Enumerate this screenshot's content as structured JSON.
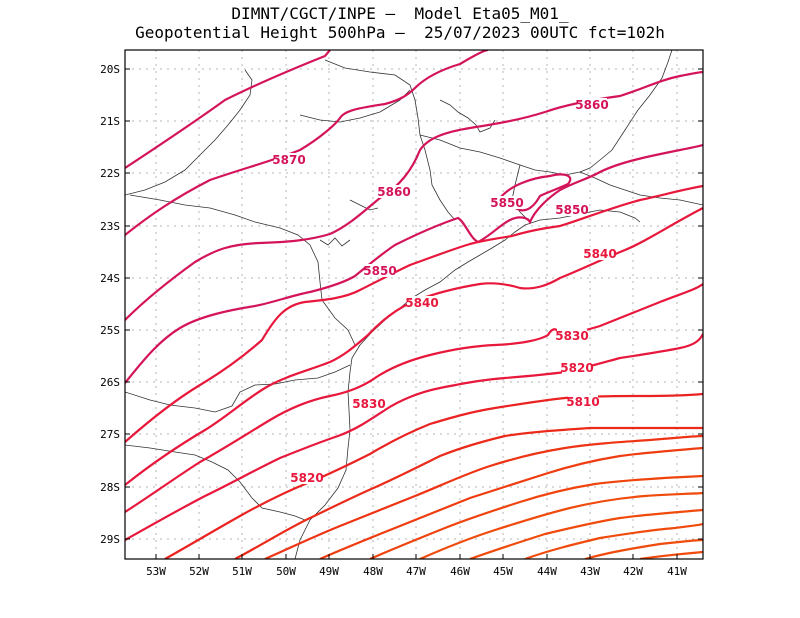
{
  "title": {
    "line1": "DIMNT/CGCT/INPE –  Model Eta05_M01_",
    "line2": "Geopotential Height 500hPa –  25/07/2023 00UTC fct=102h"
  },
  "axes": {
    "lat_labels": [
      "20S",
      "21S",
      "22S",
      "23S",
      "24S",
      "25S",
      "26S",
      "27S",
      "28S",
      "29S"
    ],
    "lon_labels": [
      "53W",
      "52W",
      "51W",
      "50W",
      "49W",
      "48W",
      "47W",
      "46W",
      "45W",
      "44W",
      "43W",
      "42W",
      "41W"
    ]
  },
  "contour_labels": [
    {
      "text": "5870",
      "color": "#d4145a"
    },
    {
      "text": "5860",
      "color": "#d4145a"
    },
    {
      "text": "5860",
      "color": "#d4145a"
    },
    {
      "text": "5850",
      "color": "#d4145a"
    },
    {
      "text": "5850",
      "color": "#d4145a"
    },
    {
      "text": "5850",
      "color": "#d4145a"
    },
    {
      "text": "5840",
      "color": "#e8183c"
    },
    {
      "text": "5840",
      "color": "#e8183c"
    },
    {
      "text": "5830",
      "color": "#e8183c"
    },
    {
      "text": "5830",
      "color": "#e8183c"
    },
    {
      "text": "5820",
      "color": "#e8183c"
    },
    {
      "text": "5820",
      "color": "#e8183c"
    },
    {
      "text": "5810",
      "color": "#e8183c"
    }
  ],
  "colors": {
    "pink": "#d4145a",
    "red": "#e8183c",
    "orangered": "#ee2a10",
    "orange": "#f04a0c"
  }
}
